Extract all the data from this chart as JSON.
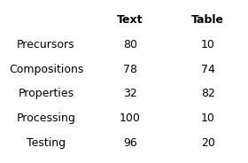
{
  "rows": [
    "Precursors",
    "Compositions",
    "Properties",
    "Processing",
    "Testing"
  ],
  "col_headers": [
    "Text",
    "Table"
  ],
  "values": [
    [
      80,
      10
    ],
    [
      78,
      74
    ],
    [
      32,
      82
    ],
    [
      100,
      10
    ],
    [
      96,
      20
    ]
  ],
  "background_color": "#ffffff",
  "font_size": 9,
  "header_font_size": 9
}
